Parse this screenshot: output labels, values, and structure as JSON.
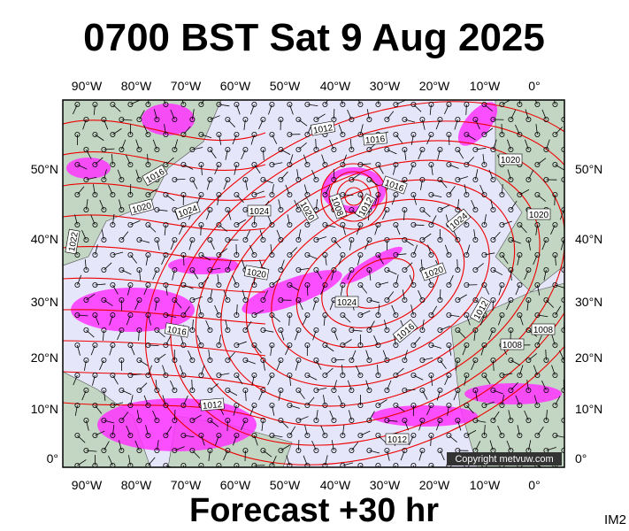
{
  "header": {
    "title": "0700 BST Sat 9 Aug 2025"
  },
  "map": {
    "lon_labels": [
      "90°W",
      "80°W",
      "70°W",
      "60°W",
      "50°W",
      "40°W",
      "30°W",
      "20°W",
      "10°W",
      "0°"
    ],
    "lat_labels": [
      "50°N",
      "40°N",
      "30°N",
      "20°N",
      "10°N",
      "0°"
    ],
    "isobar_labels": [
      "1012",
      "1016",
      "1016",
      "1020",
      "1024",
      "1024",
      "1022",
      "1020",
      "1008",
      "1012",
      "1016",
      "1024",
      "1020",
      "1020",
      "1020",
      "1020",
      "1024",
      "1016",
      "1016",
      "1012",
      "1008",
      "1008",
      "1012",
      "1012"
    ],
    "copyright": "Copyright metvuw.com"
  },
  "footer": {
    "text": "Forecast +30 hr",
    "corner": "IM2"
  }
}
